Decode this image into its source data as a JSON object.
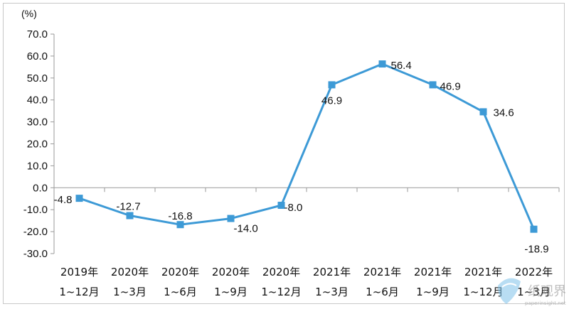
{
  "chart_data": {
    "type": "line",
    "unit_label": "(%)",
    "categories": [
      [
        "2019年",
        "1~12月"
      ],
      [
        "2020年",
        "1~3月"
      ],
      [
        "2020年",
        "1~6月"
      ],
      [
        "2020年",
        "1~9月"
      ],
      [
        "2020年",
        "1~12月"
      ],
      [
        "2021年",
        "1~3月"
      ],
      [
        "2021年",
        "1~6月"
      ],
      [
        "2021年",
        "1~9月"
      ],
      [
        "2021年",
        "1~12月"
      ],
      [
        "2022年",
        "1~3月"
      ]
    ],
    "series": [
      {
        "values": [
          -4.8,
          -12.7,
          -16.8,
          -14.0,
          -8.0,
          46.9,
          56.4,
          46.9,
          34.6,
          -18.9
        ]
      }
    ],
    "data_labels": [
      "-4.8",
      "-12.7",
      "-16.8",
      "-14.0",
      "-8.0",
      "46.9",
      "56.4",
      "46.9",
      "34.6",
      "-18.9"
    ],
    "y_ticks": [
      "70.0",
      "60.0",
      "50.0",
      "40.0",
      "30.0",
      "20.0",
      "10.0",
      "0.0",
      "-10.0",
      "-20.0",
      "-30.0"
    ],
    "ylim": [
      -30,
      70
    ],
    "grid": false,
    "legend": "none",
    "line_color": "#3d9ad6"
  },
  "watermark": {
    "brand": "纸观界",
    "url": "paperinsight.net"
  }
}
